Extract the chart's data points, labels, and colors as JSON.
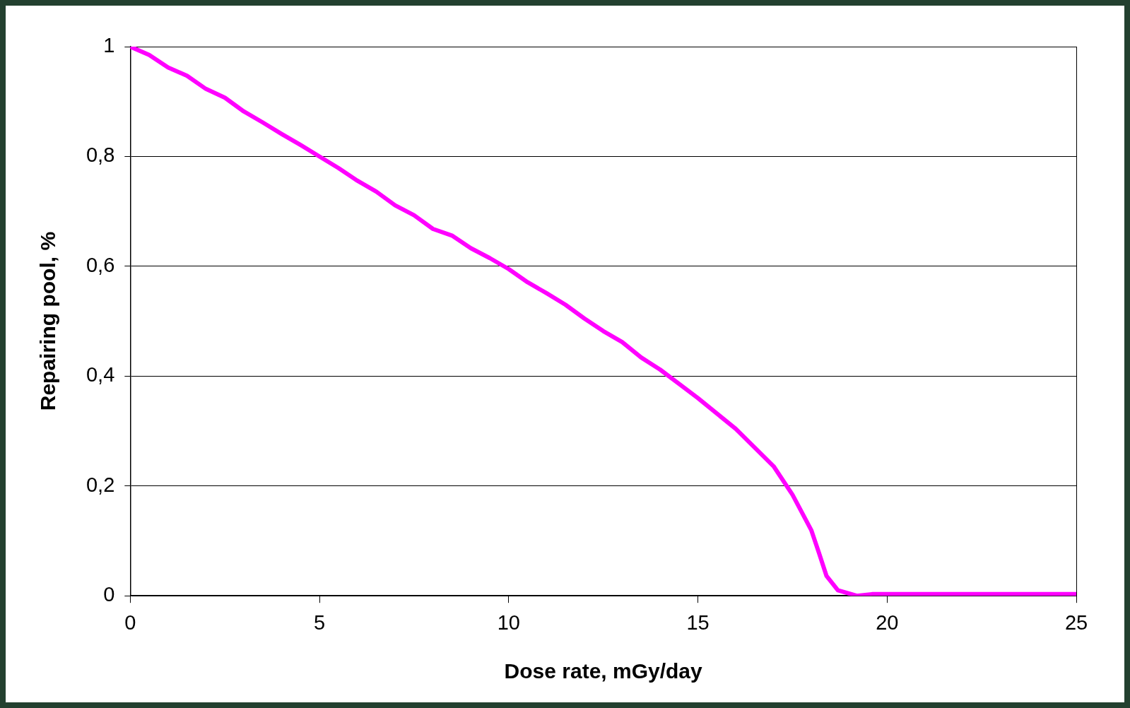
{
  "chart_data": {
    "type": "line",
    "xlabel": "Dose rate, mGy/day",
    "ylabel": "Repairing pool, %",
    "x": [
      0,
      0.5,
      1,
      1.5,
      2,
      2.5,
      3,
      3.5,
      4,
      4.5,
      5,
      5.5,
      6,
      6.5,
      7,
      7.5,
      8,
      8.5,
      9,
      9.5,
      10,
      10.5,
      11,
      11.5,
      12,
      12.5,
      13,
      13.5,
      14,
      14.5,
      15,
      15.5,
      16,
      16.5,
      17,
      17.5,
      18,
      18.2,
      18.4,
      18.7,
      19.2,
      19.6,
      20,
      21,
      22,
      23,
      24,
      25
    ],
    "series": [
      {
        "color": "#ff00ff",
        "values": [
          1,
          0.985,
          0.962,
          0.947,
          0.923,
          0.907,
          0.882,
          0.862,
          0.841,
          0.821,
          0.8,
          0.779,
          0.756,
          0.736,
          0.711,
          0.693,
          0.668,
          0.656,
          0.633,
          0.615,
          0.595,
          0.571,
          0.551,
          0.53,
          0.505,
          0.482,
          0.462,
          0.434,
          0.412,
          0.386,
          0.36,
          0.332,
          0.304,
          0.27,
          0.236,
          0.184,
          0.119,
          0.078,
          0.036,
          0.01,
          0,
          0.003,
          0.003,
          0.003,
          0.003,
          0.003,
          0.003,
          0.003
        ]
      }
    ],
    "xlim": [
      0,
      25
    ],
    "xticks": [
      0,
      5,
      10,
      15,
      20,
      25
    ],
    "ylim": [
      0,
      1
    ],
    "yticks": [
      0,
      {
        "value": 0.2,
        "label": "0,2"
      },
      {
        "value": 0.4,
        "label": "0,4"
      },
      {
        "value": 0.6,
        "label": "0,6"
      },
      {
        "value": 0.8,
        "label": "0,8"
      },
      1
    ],
    "grid": "y",
    "marker": "none",
    "line_style": "solid",
    "legend": false
  }
}
